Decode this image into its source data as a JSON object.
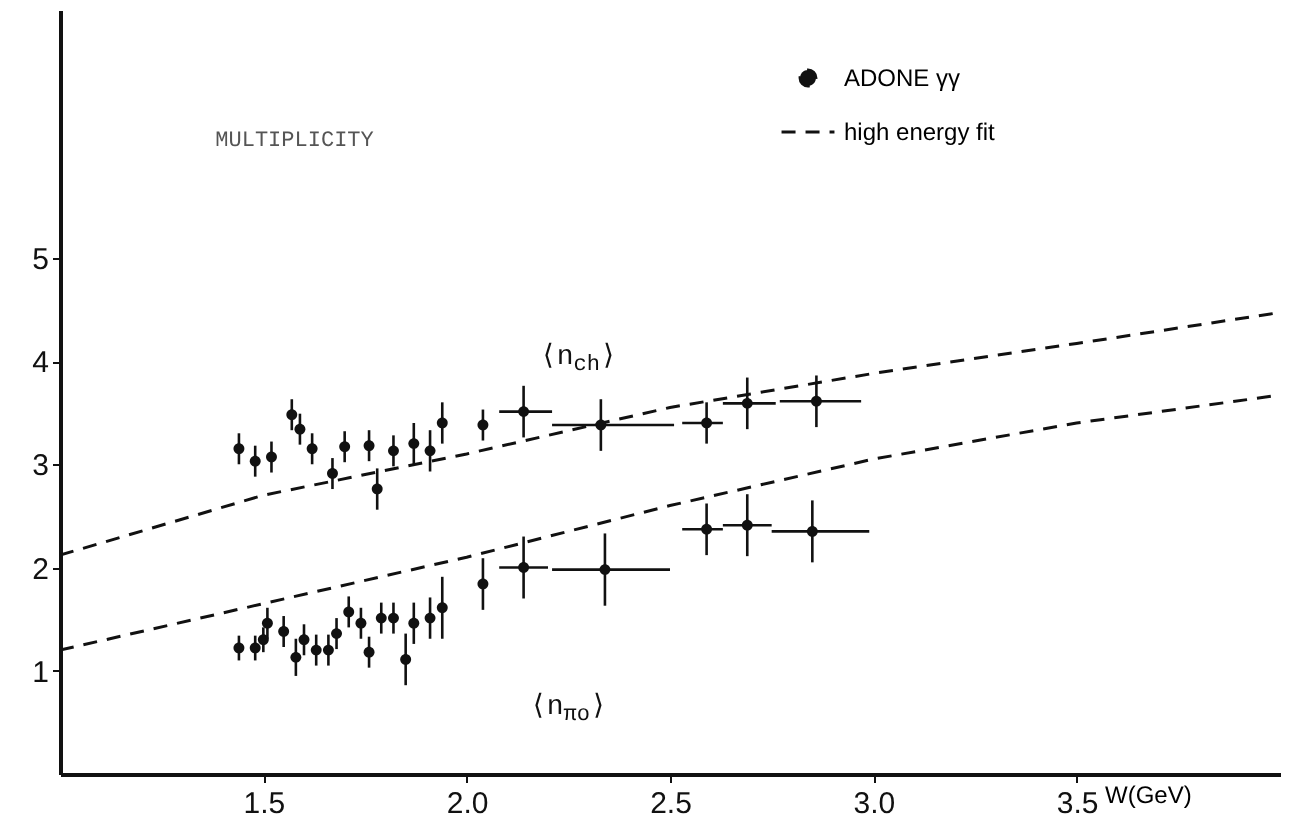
{
  "chart_data": {
    "type": "scatter",
    "title": "MULTIPLICITY",
    "xlabel": "W(GeV)",
    "xlim": [
      1.0,
      4.0
    ],
    "ylim": [
      0,
      7.4
    ],
    "xticks": [
      1.5,
      {
        "value": 2.0,
        "label": "2.0"
      },
      2.5,
      {
        "value": 3.0,
        "label": "3.0"
      },
      3.5
    ],
    "yticks": [
      1,
      2,
      3,
      4,
      5
    ],
    "grid": false,
    "legend": "top right",
    "annotations": [
      "⟨n$_{ch}$⟩",
      "⟨n$_{πo}$⟩"
    ],
    "series": [
      {
        "name": "ADONE γγ",
        "marker": "circle",
        "color": "#111111",
        "x": [
          1.44,
          1.48,
          1.52,
          1.57,
          1.59,
          1.62,
          1.67,
          1.7,
          1.76,
          1.78,
          1.82,
          1.87,
          1.91,
          1.94,
          2.04,
          2.14,
          2.33,
          2.59,
          2.69,
          2.86
        ],
        "values": [
          3.15,
          3.03,
          3.07,
          3.48,
          3.34,
          3.15,
          2.91,
          3.17,
          3.18,
          2.76,
          3.13,
          3.2,
          3.13,
          3.4,
          3.38,
          3.51,
          3.38,
          3.4,
          3.59,
          3.61
        ],
        "errors": [
          0.15,
          0.15,
          0.15,
          0.15,
          0.15,
          0.15,
          0.15,
          0.15,
          0.15,
          0.2,
          0.15,
          0.2,
          0.2,
          0.2,
          0.15,
          0.25,
          0.25,
          0.2,
          0.25,
          0.25
        ],
        "xerrors": [
          null,
          null,
          null,
          null,
          null,
          null,
          null,
          null,
          null,
          null,
          null,
          null,
          null,
          null,
          null,
          [
            2.08,
            2.21
          ],
          [
            2.21,
            2.51
          ],
          [
            2.53,
            2.63
          ],
          [
            2.63,
            2.76
          ],
          [
            2.77,
            2.97
          ]
        ]
      },
      {
        "marker": "circle",
        "color": "#111111",
        "x": [
          1.44,
          1.48,
          1.5,
          1.51,
          1.55,
          1.58,
          1.6,
          1.63,
          1.66,
          1.68,
          1.71,
          1.74,
          1.76,
          1.79,
          1.82,
          1.85,
          1.87,
          1.91,
          1.94,
          2.04,
          2.14,
          2.34,
          2.59,
          2.69,
          2.85
        ],
        "values": [
          1.22,
          1.22,
          1.3,
          1.46,
          1.38,
          1.13,
          1.3,
          1.2,
          1.2,
          1.36,
          1.57,
          1.46,
          1.18,
          1.51,
          1.51,
          1.11,
          1.46,
          1.51,
          1.61,
          1.84,
          2.0,
          1.98,
          2.37,
          2.41,
          2.35
        ],
        "errors": [
          0.12,
          0.12,
          0.12,
          0.15,
          0.15,
          0.18,
          0.15,
          0.15,
          0.15,
          0.15,
          0.15,
          0.15,
          0.15,
          0.15,
          0.15,
          0.25,
          0.2,
          0.2,
          0.3,
          0.25,
          0.3,
          0.35,
          0.25,
          0.3,
          0.3
        ],
        "xerrors": [
          null,
          null,
          null,
          null,
          null,
          null,
          null,
          null,
          null,
          null,
          null,
          null,
          null,
          null,
          null,
          null,
          null,
          null,
          null,
          null,
          [
            2.08,
            2.2
          ],
          [
            2.21,
            2.5
          ],
          [
            2.53,
            2.63
          ],
          [
            2.63,
            2.75
          ],
          [
            2.75,
            2.99
          ]
        ]
      },
      {
        "name": "high energy fit",
        "type": "line",
        "line_style": "dashed",
        "color": "#111111",
        "x": [
          1.0,
          1.5,
          2.0,
          2.5,
          3.0,
          3.5,
          4.0
        ],
        "values": [
          2.12,
          2.7,
          3.1,
          3.55,
          3.88,
          4.17,
          4.47
        ]
      },
      {
        "type": "line",
        "line_style": "dashed",
        "color": "#111111",
        "x": [
          1.0,
          1.5,
          2.0,
          2.5,
          3.0,
          3.5,
          4.0
        ],
        "values": [
          1.2,
          1.65,
          2.1,
          2.6,
          3.05,
          3.4,
          3.67
        ]
      }
    ]
  }
}
